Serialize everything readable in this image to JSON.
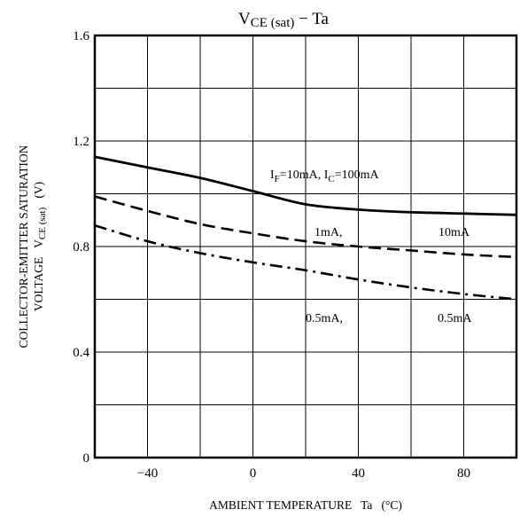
{
  "chart_data": {
    "type": "line",
    "title": {
      "main": "V",
      "sub": "CE (sat)",
      "rest": "  −  Ta"
    },
    "xlabel": "AMBIENT TEMPERATURE   Ta   (°C)",
    "ylabel": {
      "line1": "COLLECTOR-EMITTER SATURATION",
      "line2_main": "VOLTAGE   V",
      "line2_sub": "CE (sat)",
      "line2_unit": "   (V)"
    },
    "xlim": [
      -60,
      100
    ],
    "ylim": [
      0,
      1.6
    ],
    "grid": true,
    "x_ticks": [
      {
        "value": -40,
        "label": "−40"
      },
      {
        "value": 0,
        "label": "0"
      },
      {
        "value": 40,
        "label": "40"
      },
      {
        "value": 80,
        "label": "80"
      }
    ],
    "y_ticks": [
      {
        "value": 0,
        "label": "0"
      },
      {
        "value": 0.4,
        "label": "0.4"
      },
      {
        "value": 0.8,
        "label": "0.8"
      },
      {
        "value": 1.2,
        "label": "1.2"
      },
      {
        "value": 1.6,
        "label": "1.6"
      }
    ],
    "series": [
      {
        "style": "solid",
        "x": [
          -60,
          -40,
          -20,
          0,
          20,
          40,
          60,
          80,
          100
        ],
        "y": [
          1.14,
          1.1,
          1.06,
          1.01,
          0.96,
          0.94,
          0.93,
          0.925,
          0.92
        ]
      },
      {
        "style": "dashed",
        "x": [
          -60,
          -40,
          -20,
          0,
          20,
          40,
          60,
          80,
          100
        ],
        "y": [
          0.99,
          0.935,
          0.885,
          0.85,
          0.82,
          0.8,
          0.785,
          0.77,
          0.76
        ]
      },
      {
        "style": "dashdot",
        "x": [
          -60,
          -40,
          -20,
          0,
          20,
          40,
          60,
          80,
          100
        ],
        "y": [
          0.88,
          0.82,
          0.775,
          0.74,
          0.71,
          0.675,
          0.645,
          0.62,
          0.6
        ]
      }
    ],
    "annotations": [
      {
        "id": "if_ic",
        "i_f_sub": "F",
        "eq1": "=10mA, I",
        "i_c_sub": "C",
        "eq2": "=100mA"
      },
      {
        "id": "mid_left",
        "text": "1mA,"
      },
      {
        "id": "mid_right",
        "text": "10mA"
      },
      {
        "id": "low_left",
        "text": "0.5mA,"
      },
      {
        "id": "low_right",
        "text": "0.5mA"
      }
    ]
  }
}
